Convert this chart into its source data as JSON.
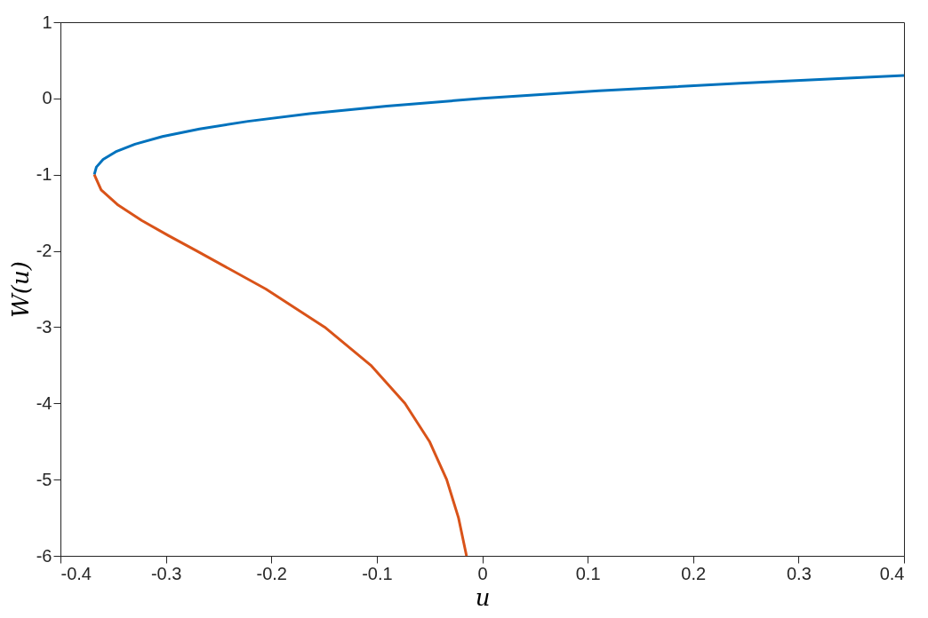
{
  "chart_data": {
    "type": "line",
    "xlabel": "u",
    "ylabel": "W(u)",
    "xlim": [
      -0.4,
      0.4
    ],
    "ylim": [
      -6,
      1
    ],
    "xticks": [
      -0.4,
      -0.3,
      -0.2,
      -0.1,
      0,
      0.1,
      0.2,
      0.3,
      0.4
    ],
    "yticks": [
      -6,
      -5,
      -4,
      -3,
      -2,
      -1,
      0,
      1
    ],
    "grid": false,
    "line_style": "solid",
    "marker": "none",
    "series": [
      {
        "color": "#0072bd",
        "x": [
          -0.3679,
          -0.3659,
          -0.3595,
          -0.3476,
          -0.3293,
          -0.3033,
          -0.2681,
          -0.2222,
          -0.1637,
          -0.0905,
          0,
          0.1105,
          0.2443,
          0.4
        ],
        "values": [
          -1,
          -0.9,
          -0.8,
          -0.7,
          -0.6,
          -0.5,
          -0.4,
          -0.3,
          -0.2,
          -0.1,
          0,
          0.1,
          0.2,
          0.3
        ]
      },
      {
        "color": "#d95319",
        "x": [
          -0.3679,
          -0.3614,
          -0.3452,
          -0.323,
          -0.2975,
          -0.2707,
          -0.2052,
          -0.1494,
          -0.1057,
          -0.0733,
          -0.05,
          -0.0337,
          -0.0225,
          -0.0149
        ],
        "values": [
          -1,
          -1.2,
          -1.4,
          -1.6,
          -1.8,
          -2,
          -2.5,
          -3,
          -3.5,
          -4,
          -4.5,
          -5,
          -5.5,
          -6
        ]
      }
    ]
  }
}
